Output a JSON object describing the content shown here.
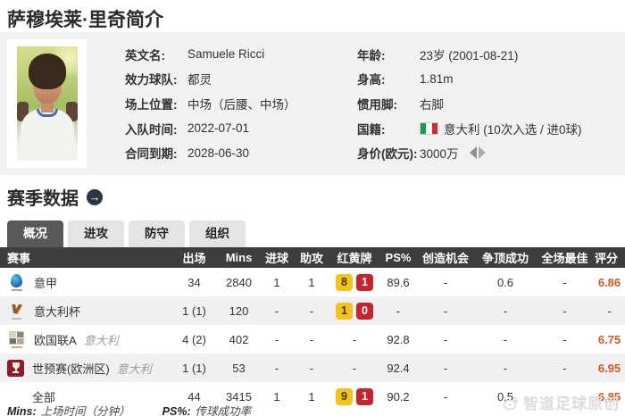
{
  "page": {
    "title": "萨穆埃莱·里奇简介"
  },
  "profile": {
    "left": [
      {
        "label": "英文名:",
        "value": "Samuele Ricci"
      },
      {
        "label": "效力球队:",
        "value": "都灵"
      },
      {
        "label": "场上位置:",
        "value": "中场（后腰、中场）"
      },
      {
        "label": "入队时间:",
        "value": "2022-07-01"
      },
      {
        "label": "合同到期:",
        "value": "2028-06-30"
      }
    ],
    "right": [
      {
        "label": "年龄:",
        "value": "23岁 (2001-08-21)"
      },
      {
        "label": "身高:",
        "value": "1.81m"
      },
      {
        "label": "惯用脚:",
        "value": "右脚"
      },
      {
        "label": "国籍:",
        "value": "意大利 (10次入选 / 进0球)",
        "flag": "italy-flag"
      },
      {
        "label": "身价(欧元):",
        "value": "3000万",
        "trend_icon": "value-change-icon"
      }
    ]
  },
  "season_section": {
    "heading": "赛季数据",
    "link_icon": "→"
  },
  "tabs": [
    {
      "label": "概况",
      "active": true
    },
    {
      "label": "进攻",
      "active": false
    },
    {
      "label": "防守",
      "active": false
    },
    {
      "label": "组织",
      "active": false
    }
  ],
  "table": {
    "headers": [
      "赛事",
      "出场",
      "Mins",
      "进球",
      "助攻",
      "红黄牌",
      "PS%",
      "创造机会",
      "争顶成功",
      "全场最佳",
      "评分"
    ],
    "rows": [
      {
        "competition": "意甲",
        "icon": "serie-a-icon",
        "team": "",
        "apps": "34",
        "mins": "2840",
        "goals": "1",
        "assists": "1",
        "yellow": "8",
        "red": "1",
        "ps": "89.6",
        "chances": "-",
        "aerials": "0.6",
        "motm": "-",
        "rating": "6.86",
        "total": false
      },
      {
        "competition": "意大利杯",
        "icon": "coppa-italia-icon",
        "team": "",
        "apps": "1 (1)",
        "mins": "120",
        "goals": "-",
        "assists": "-",
        "yellow": "1",
        "red": "0",
        "ps": "-",
        "chances": "-",
        "aerials": "-",
        "motm": "-",
        "rating": "-",
        "total": false
      },
      {
        "competition": "欧国联A",
        "icon": "nations-league-icon",
        "team": "意大利",
        "apps": "4 (2)",
        "mins": "402",
        "goals": "-",
        "assists": "-",
        "cards": "-",
        "ps": "92.8",
        "chances": "-",
        "aerials": "-",
        "motm": "-",
        "rating": "6.75",
        "total": false
      },
      {
        "competition": "世预赛(欧洲区)",
        "icon": "world-cup-icon",
        "team": "意大利",
        "apps": "1 (1)",
        "mins": "53",
        "goals": "-",
        "assists": "-",
        "cards": "-",
        "ps": "92.4",
        "chances": "-",
        "aerials": "-",
        "motm": "-",
        "rating": "6.95",
        "total": false
      },
      {
        "competition": "全部",
        "icon": "",
        "team": "",
        "apps": "44",
        "mins": "3415",
        "goals": "1",
        "assists": "1",
        "yellow": "9",
        "red": "1",
        "ps": "90.2",
        "chances": "-",
        "aerials": "0.5",
        "motm": "-",
        "rating": "6.85",
        "total": true
      }
    ]
  },
  "footnotes": [
    {
      "label": "Mins:",
      "text": "上场时间（分钟）"
    },
    {
      "label": "PS%:",
      "text": "传球成功率"
    }
  ],
  "watermark": {
    "text": "智道足球原创",
    "icon": "weibo-icon"
  },
  "colors": {
    "header_bar": "#3d3d3d",
    "active_tab": "#595959",
    "yellow_card": "#f2c31b",
    "red_card": "#c6242e",
    "rating": "#cb5a27",
    "flag_green": "#169b50",
    "flag_red": "#ce2b37"
  }
}
